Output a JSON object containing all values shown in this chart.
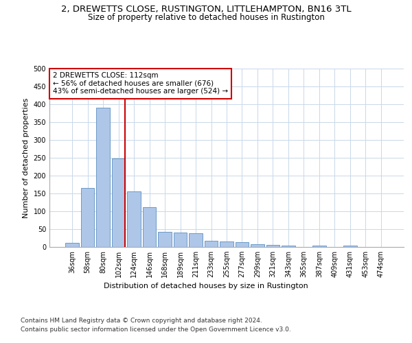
{
  "title": "2, DREWETTS CLOSE, RUSTINGTON, LITTLEHAMPTON, BN16 3TL",
  "subtitle": "Size of property relative to detached houses in Rustington",
  "xlabel": "Distribution of detached houses by size in Rustington",
  "ylabel": "Number of detached properties",
  "categories": [
    "36sqm",
    "58sqm",
    "80sqm",
    "102sqm",
    "124sqm",
    "146sqm",
    "168sqm",
    "189sqm",
    "211sqm",
    "233sqm",
    "255sqm",
    "277sqm",
    "299sqm",
    "321sqm",
    "343sqm",
    "365sqm",
    "387sqm",
    "409sqm",
    "431sqm",
    "453sqm",
    "474sqm"
  ],
  "values": [
    12,
    165,
    390,
    248,
    155,
    112,
    42,
    40,
    38,
    18,
    15,
    13,
    8,
    6,
    4,
    0,
    3,
    0,
    4,
    0,
    0
  ],
  "bar_color": "#aec6e8",
  "bar_edge_color": "#5a8fc0",
  "vline_x_index": 3,
  "vline_color": "#cc0000",
  "ylim": [
    0,
    500
  ],
  "yticks": [
    0,
    50,
    100,
    150,
    200,
    250,
    300,
    350,
    400,
    450,
    500
  ],
  "annotation_text": "2 DREWETTS CLOSE: 112sqm\n← 56% of detached houses are smaller (676)\n43% of semi-detached houses are larger (524) →",
  "annotation_box_color": "#ffffff",
  "annotation_box_edge_color": "#cc0000",
  "footer_line1": "Contains HM Land Registry data © Crown copyright and database right 2024.",
  "footer_line2": "Contains public sector information licensed under the Open Government Licence v3.0.",
  "background_color": "#ffffff",
  "grid_color": "#c8d8e8",
  "title_fontsize": 9.5,
  "subtitle_fontsize": 8.5,
  "tick_fontsize": 7,
  "ylabel_fontsize": 8,
  "xlabel_fontsize": 8,
  "annot_fontsize": 7.5,
  "footer_fontsize": 6.5
}
